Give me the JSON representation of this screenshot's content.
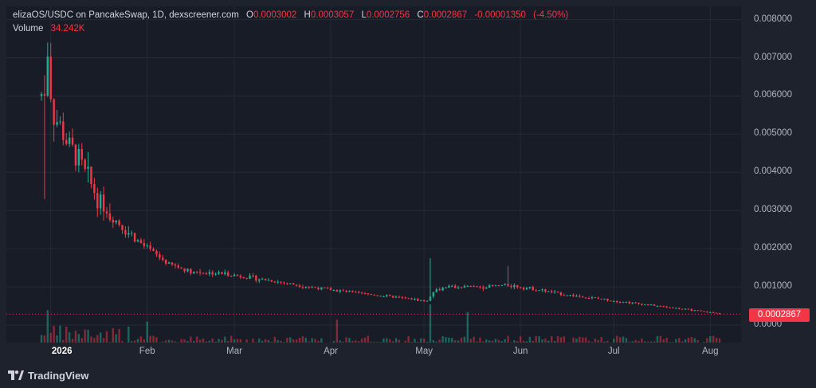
{
  "legend": {
    "symbol": "elizaOS/USDC on PancakeSwap, 1D, dexscreener.com",
    "open_label": "O",
    "open": "0.0003002",
    "high_label": "H",
    "high": "0.0003057",
    "low_label": "L",
    "low": "0.0002756",
    "close_label": "C",
    "close": "0.0002867",
    "change": "-0.00001350",
    "change_pct": "(-4.50%)",
    "volume_label": "Volume",
    "volume": "34.242K"
  },
  "price_axis": {
    "ticks": [
      "0.008000",
      "0.007000",
      "0.006000",
      "0.005000",
      "0.004000",
      "0.003000",
      "0.002000",
      "0.001000",
      "0.0000"
    ],
    "last_price": "0.0002867"
  },
  "time_axis": {
    "ticks": [
      {
        "label": "2026",
        "bold": true
      },
      {
        "label": "Feb",
        "bold": false
      },
      {
        "label": "Mar",
        "bold": false
      },
      {
        "label": "Apr",
        "bold": false
      },
      {
        "label": "May",
        "bold": false
      },
      {
        "label": "Jun",
        "bold": false
      },
      {
        "label": "Jul",
        "bold": false
      },
      {
        "label": "Aug",
        "bold": false
      }
    ]
  },
  "branding": {
    "logo_text": "TradingView"
  },
  "colors": {
    "up": "#22ab94",
    "down": "#f23645",
    "background": "#181c27",
    "grid": "#262a35"
  },
  "chart_data": {
    "type": "candlestick",
    "symbol": "elizaOS/USDC",
    "interval": "1D",
    "x_range": [
      "2025-12-29",
      "2026-08-04"
    ],
    "y_range": [
      0,
      0.008
    ],
    "keypoints": [
      {
        "date": "2025-12-29",
        "price": 0.006
      },
      {
        "date": "2025-12-31",
        "price": 0.0068
      },
      {
        "date": "2026-01-02",
        "price": 0.0055
      },
      {
        "date": "2026-01-04",
        "price": 0.0052
      },
      {
        "date": "2026-01-07",
        "price": 0.0047
      },
      {
        "date": "2026-01-10",
        "price": 0.0043
      },
      {
        "date": "2026-01-15",
        "price": 0.0035
      },
      {
        "date": "2026-01-20",
        "price": 0.0029
      },
      {
        "date": "2026-01-25",
        "price": 0.0025
      },
      {
        "date": "2026-02-01",
        "price": 0.002
      },
      {
        "date": "2026-02-08",
        "price": 0.0016
      },
      {
        "date": "2026-02-15",
        "price": 0.0014
      },
      {
        "date": "2026-02-25",
        "price": 0.00135
      },
      {
        "date": "2026-03-10",
        "price": 0.0012
      },
      {
        "date": "2026-03-25",
        "price": 0.001
      },
      {
        "date": "2026-04-08",
        "price": 0.00085
      },
      {
        "date": "2026-04-25",
        "price": 0.0007
      },
      {
        "date": "2026-05-02",
        "price": 0.00062
      },
      {
        "date": "2026-05-04",
        "price": 0.0009
      },
      {
        "date": "2026-05-08",
        "price": 0.001
      },
      {
        "date": "2026-05-20",
        "price": 0.001
      },
      {
        "date": "2026-05-28",
        "price": 0.00105
      },
      {
        "date": "2026-06-05",
        "price": 0.00095
      },
      {
        "date": "2026-06-15",
        "price": 0.0008
      },
      {
        "date": "2026-06-25",
        "price": 0.0007
      },
      {
        "date": "2026-07-05",
        "price": 0.0006
      },
      {
        "date": "2026-07-15",
        "price": 0.0005
      },
      {
        "date": "2026-07-25",
        "price": 0.0004
      },
      {
        "date": "2026-08-04",
        "price": 0.0003
      }
    ],
    "spikes": [
      {
        "date": "2025-12-31",
        "high": 0.0074
      },
      {
        "date": "2026-05-03",
        "high": 0.00175
      },
      {
        "date": "2026-05-28",
        "high": 0.00155
      }
    ],
    "volume_spikes": [
      {
        "date": "2026-05-03",
        "volume": 1.0
      },
      {
        "date": "2025-12-31",
        "volume": 0.85
      },
      {
        "date": "2026-05-15",
        "volume": 0.8
      },
      {
        "date": "2026-04-03",
        "volume": 0.6
      },
      {
        "date": "2026-02-01",
        "volume": 0.55
      }
    ],
    "volume_unit": "relative",
    "last_volume": "34.242K"
  }
}
